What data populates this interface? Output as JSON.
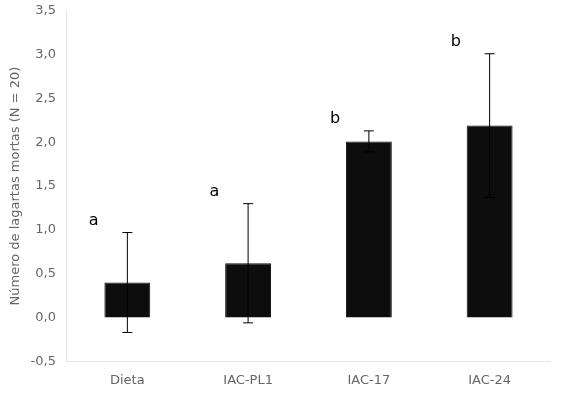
{
  "chart_data": {
    "type": "bar",
    "categories": [
      "Dieta",
      "IAC-PL1",
      "IAC-17",
      "IAC-24"
    ],
    "values": [
      0.4,
      0.62,
      2.01,
      2.19
    ],
    "errors": [
      0.57,
      0.68,
      0.12,
      0.82
    ],
    "letters": [
      "a",
      "a",
      "b",
      "b"
    ],
    "color": "#0d0d0d",
    "ylabel": "Número de lagartas mortas (N = 20)",
    "ylim": [
      -0.5,
      3.5
    ],
    "yticks": [
      {
        "value": -0.5,
        "label": "-0,5"
      },
      {
        "value": 0.0,
        "label": "0,0"
      },
      {
        "value": 0.5,
        "label": "0,5"
      },
      {
        "value": 1.0,
        "label": "1,0"
      },
      {
        "value": 1.5,
        "label": "1,5"
      },
      {
        "value": 2.0,
        "label": "2,0"
      },
      {
        "value": 2.5,
        "label": "2,5"
      },
      {
        "value": 3.0,
        "label": "3,0"
      },
      {
        "value": 3.5,
        "label": "3,5"
      }
    ],
    "grid": false
  }
}
